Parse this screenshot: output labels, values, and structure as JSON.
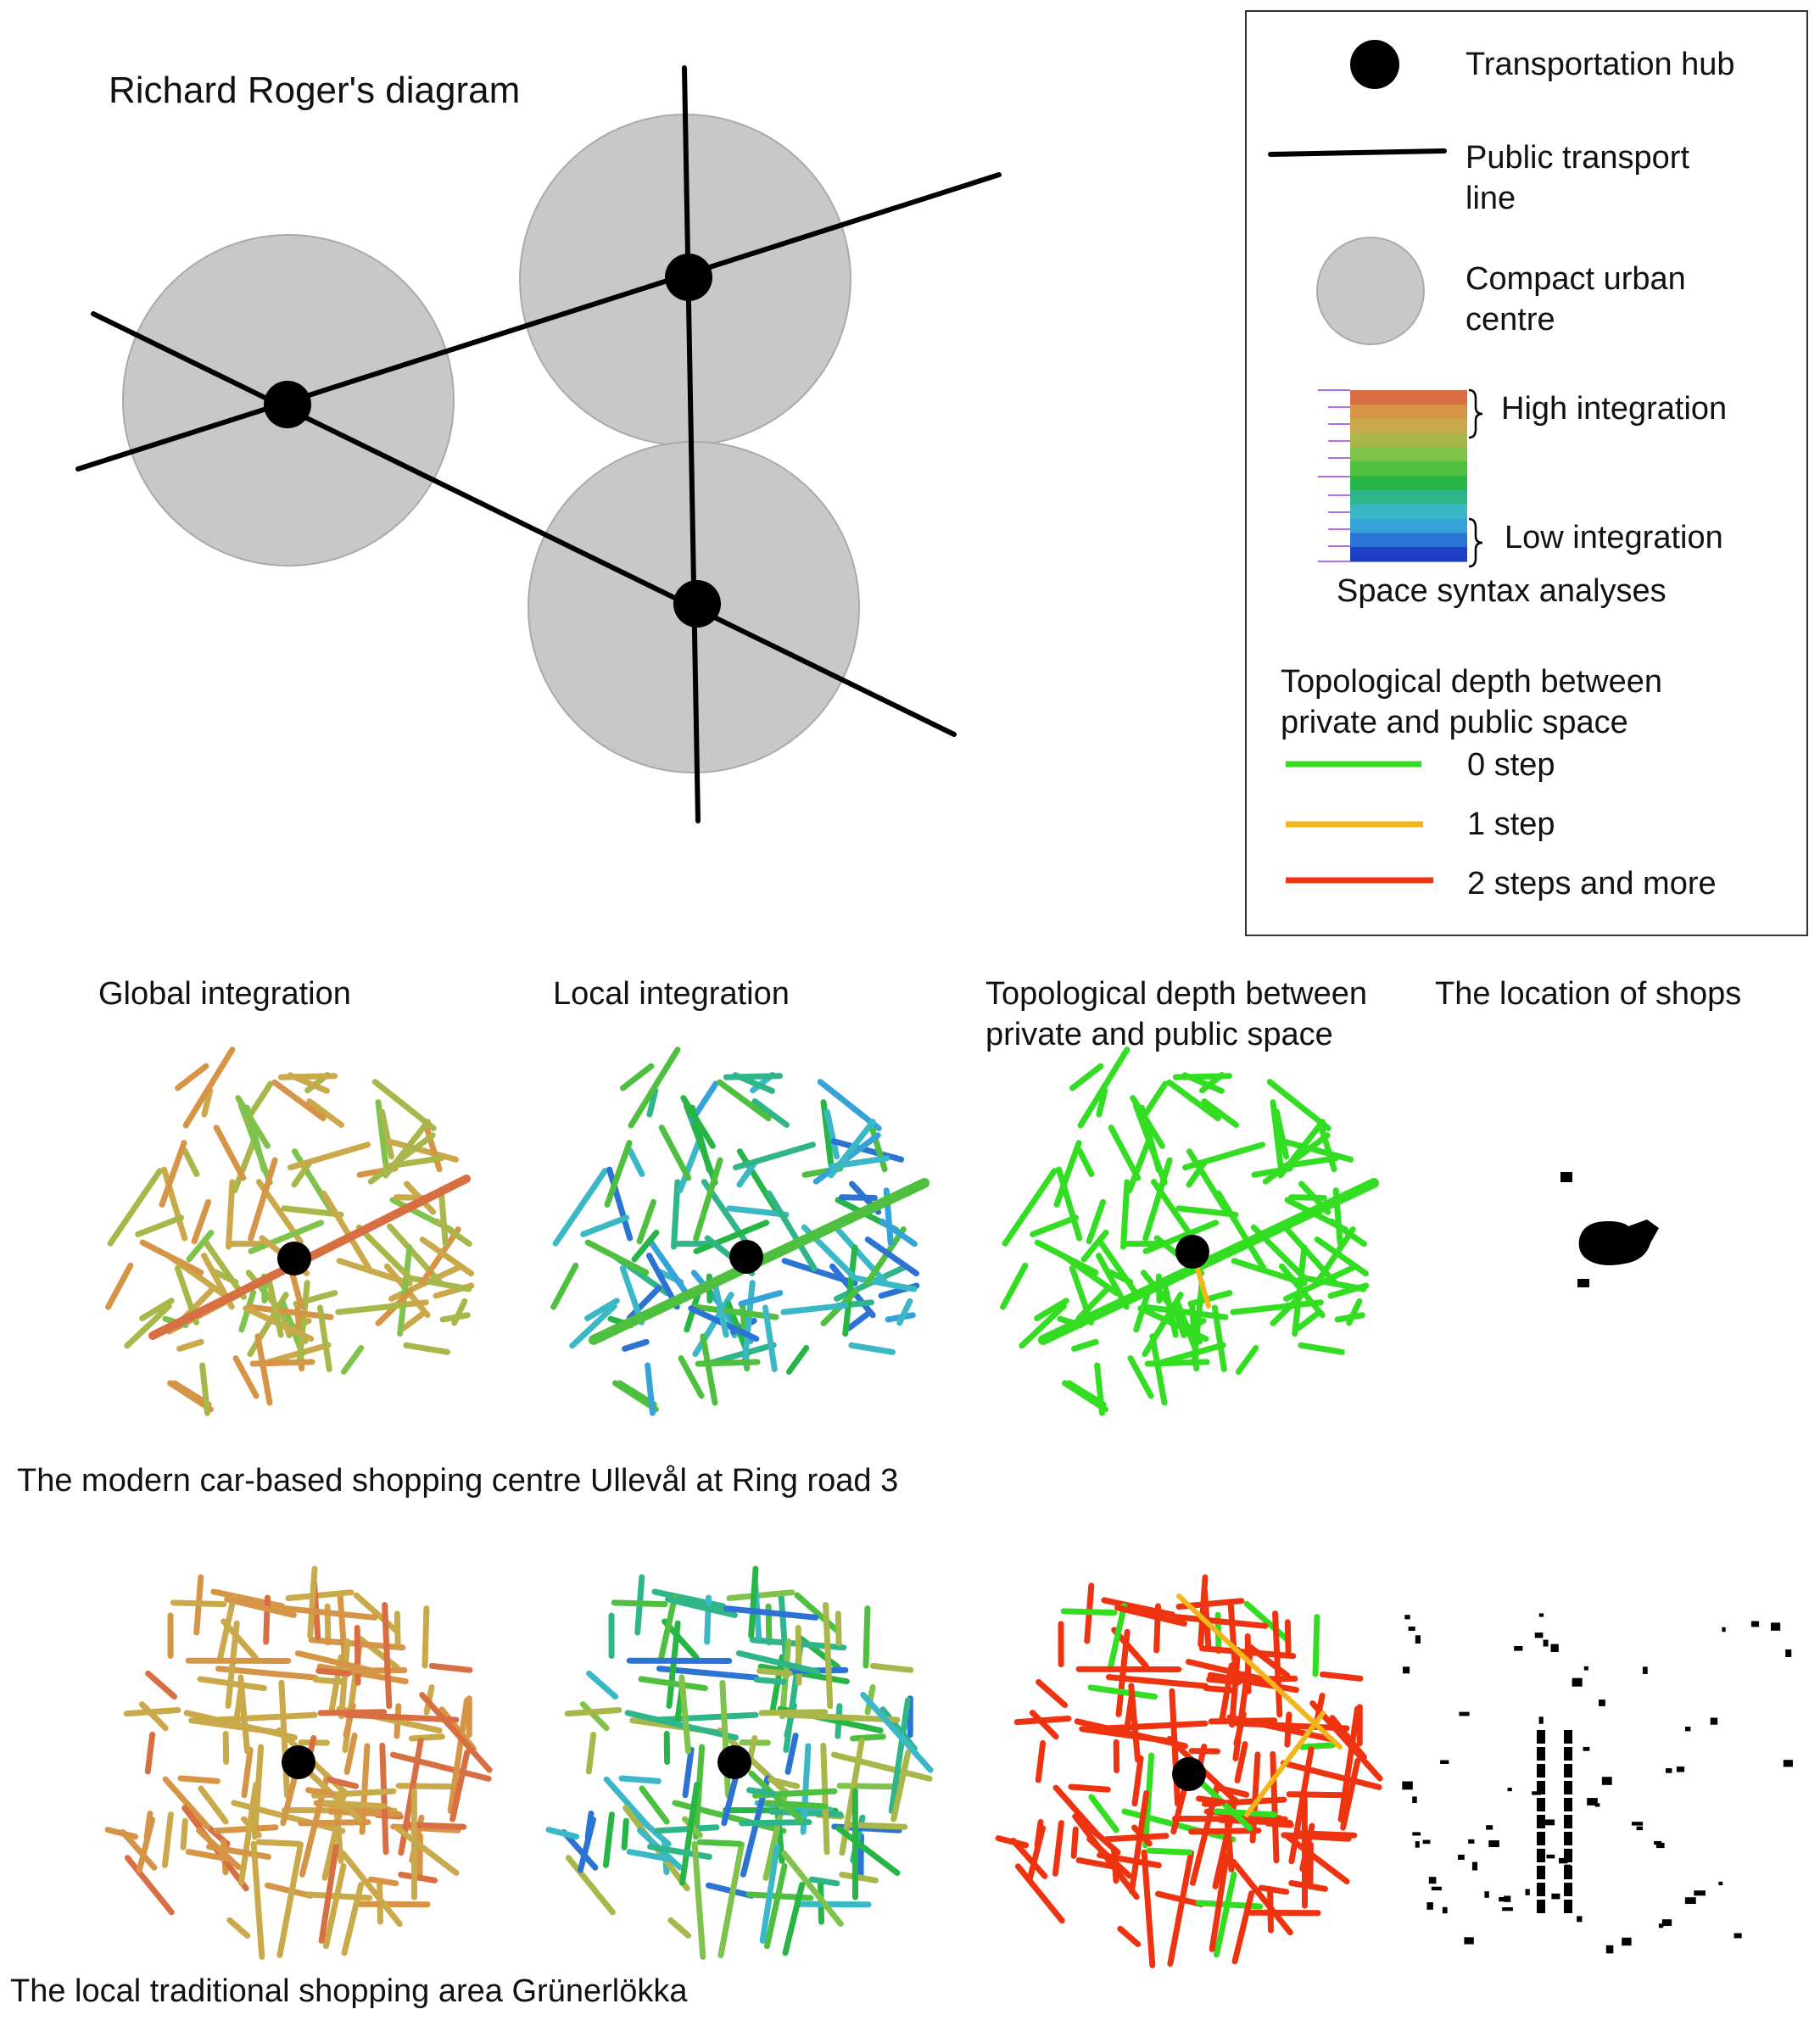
{
  "diagram": {
    "title": "Richard Roger's diagram"
  },
  "legend": {
    "hub": "Transportation hub",
    "line_a": "Public transport",
    "line_b": "line",
    "centre_a": "Compact urban",
    "centre_b": "centre",
    "high": "High integration",
    "low": "Low integration",
    "space_syntax": "Space syntax analyses",
    "depth_a": "Topological depth between",
    "depth_b": "private and public space",
    "step0": "0 step",
    "step1": "1 step",
    "step2": "2 steps and more",
    "colors": {
      "step0": "#33dd22",
      "step1": "#f2b51a",
      "step2": "#ee3311",
      "scale": [
        "#d86f42",
        "#d69546",
        "#c9a94a",
        "#a9b64a",
        "#7fc24c",
        "#4fbf3f",
        "#27b546",
        "#2fb58a",
        "#3bb8c6",
        "#35a3d8",
        "#2b74d4",
        "#1e3fc4"
      ]
    }
  },
  "columns": {
    "global": "Global integration",
    "local": "Local integration",
    "depth_a": "Topological depth between",
    "depth_b": "private and public space",
    "shops": "The location of shops"
  },
  "rows": {
    "row1": "The modern car-based shopping centre Ullevål at Ring road 3",
    "row2": "The local traditional shopping area Grünerlökka"
  }
}
